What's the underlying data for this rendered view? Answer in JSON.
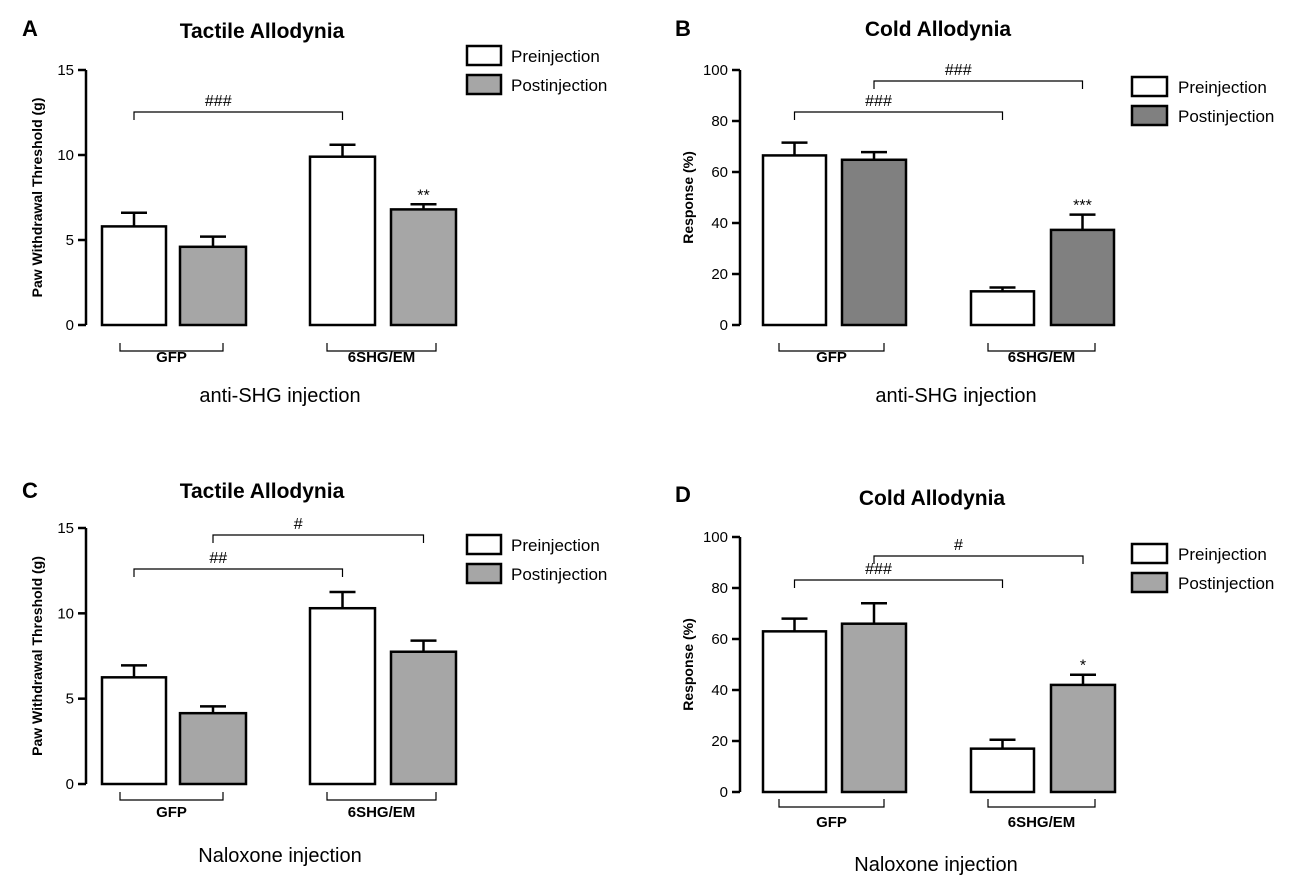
{
  "colors": {
    "pre": "#ffffff",
    "post": "#a6a6a6",
    "post_dark": "#808080",
    "ink": "#000000"
  },
  "chart_data": [
    {
      "panel": "A",
      "type": "bar",
      "title": "Tactile Allodynia",
      "xlabel": "anti-SHG injection",
      "ylabel": "Paw Withdrawal Threshold (g)",
      "ylim": [
        0,
        15
      ],
      "yticks": [
        0,
        5,
        10,
        15
      ],
      "categories": [
        "GFP",
        "6SHG/EM"
      ],
      "series": [
        {
          "name": "Preinjection",
          "fill": "#ffffff",
          "values": [
            5.8,
            9.9
          ],
          "errors": [
            0.8,
            0.7
          ]
        },
        {
          "name": "Postinjection",
          "fill": "#a6a6a6",
          "values": [
            4.6,
            6.8
          ],
          "errors": [
            0.6,
            0.3
          ]
        }
      ],
      "legend": [
        "Preinjection",
        "Postinjection"
      ],
      "significance": [
        {
          "label": "###",
          "from": "GFP-Preinjection",
          "to": "6SHG/EM-Preinjection"
        }
      ],
      "bar_stars": [
        {
          "bar": "6SHG/EM-Postinjection",
          "label": "**"
        }
      ]
    },
    {
      "panel": "B",
      "type": "bar",
      "title": "Cold Allodynia",
      "xlabel": "anti-SHG injection",
      "ylabel": "Response (%)",
      "ylim": [
        0,
        100
      ],
      "yticks": [
        0,
        20,
        40,
        60,
        80,
        100
      ],
      "categories": [
        "GFP",
        "6SHG/EM"
      ],
      "series": [
        {
          "name": "Preinjection",
          "fill": "#ffffff",
          "values": [
            66.5,
            13.2
          ],
          "errors": [
            5.0,
            1.5
          ]
        },
        {
          "name": "Postinjection",
          "fill": "#808080",
          "values": [
            64.8,
            37.3
          ],
          "errors": [
            3.0,
            6.0
          ]
        }
      ],
      "legend": [
        "Preinjection",
        "Postinjection"
      ],
      "significance": [
        {
          "label": "###",
          "from": "GFP-Preinjection",
          "to": "6SHG/EM-Preinjection"
        },
        {
          "label": "###",
          "from": "GFP-Postinjection",
          "to": "6SHG/EM-Postinjection"
        }
      ],
      "bar_stars": [
        {
          "bar": "6SHG/EM-Postinjection",
          "label": "***"
        }
      ]
    },
    {
      "panel": "C",
      "type": "bar",
      "title": "Tactile Allodynia",
      "xlabel": "Naloxone injection",
      "ylabel": "Paw Withdrawal Threshold (g)",
      "ylim": [
        0,
        15
      ],
      "yticks": [
        0,
        5,
        10,
        15
      ],
      "categories": [
        "GFP",
        "6SHG/EM"
      ],
      "series": [
        {
          "name": "Preinjection",
          "fill": "#ffffff",
          "values": [
            6.25,
            10.3
          ],
          "errors": [
            0.7,
            0.95
          ]
        },
        {
          "name": "Postinjection",
          "fill": "#a6a6a6",
          "values": [
            4.15,
            7.75
          ],
          "errors": [
            0.4,
            0.65
          ]
        }
      ],
      "legend": [
        "Preinjection",
        "Postinjection"
      ],
      "significance": [
        {
          "label": "##",
          "from": "GFP-Preinjection",
          "to": "6SHG/EM-Preinjection"
        },
        {
          "label": "#",
          "from": "GFP-Postinjection",
          "to": "6SHG/EM-Postinjection"
        }
      ],
      "bar_stars": []
    },
    {
      "panel": "D",
      "type": "bar",
      "title": "Cold Allodynia",
      "xlabel": "Naloxone injection",
      "ylabel": "Response (%)",
      "ylim": [
        0,
        100
      ],
      "yticks": [
        0,
        20,
        40,
        60,
        80,
        100
      ],
      "categories": [
        "GFP",
        "6SHG/EM"
      ],
      "series": [
        {
          "name": "Preinjection",
          "fill": "#ffffff",
          "values": [
            63.0,
            17.0
          ],
          "errors": [
            5.0,
            3.5
          ]
        },
        {
          "name": "Postinjection",
          "fill": "#a6a6a6",
          "values": [
            66.0,
            42.0
          ],
          "errors": [
            8.0,
            4.0
          ]
        }
      ],
      "legend": [
        "Preinjection",
        "Postinjection"
      ],
      "significance": [
        {
          "label": "###",
          "from": "GFP-Preinjection",
          "to": "6SHG/EM-Preinjection"
        },
        {
          "label": "#",
          "from": "GFP-Postinjection",
          "to": "6SHG/EM-Postinjection"
        }
      ],
      "bar_stars": [
        {
          "bar": "6SHG/EM-Postinjection",
          "label": "*"
        }
      ]
    }
  ]
}
